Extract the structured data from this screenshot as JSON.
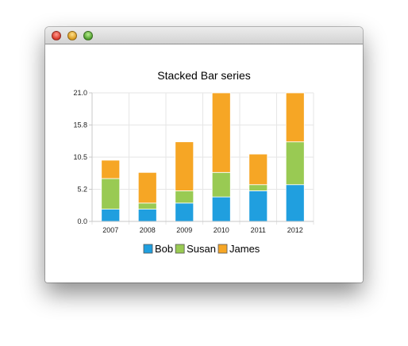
{
  "window": {
    "title": ""
  },
  "colors": {
    "Bob": "#209fdf",
    "Susan": "#99ca53",
    "James": "#f6a625",
    "grid": "#e6e6e6",
    "axis": "#c8c8c8"
  },
  "chart_data": {
    "type": "bar",
    "stacked": true,
    "title": "Stacked Bar series",
    "xlabel": "",
    "ylabel": "",
    "categories": [
      "2007",
      "2008",
      "2009",
      "2010",
      "2011",
      "2012"
    ],
    "series": [
      {
        "name": "Bob",
        "values": [
          2,
          2,
          3,
          4,
          5,
          6
        ]
      },
      {
        "name": "Susan",
        "values": [
          5,
          1,
          2,
          4,
          1,
          7
        ]
      },
      {
        "name": "James",
        "values": [
          3,
          5,
          8,
          13,
          5,
          8
        ]
      }
    ],
    "ylim": [
      0,
      21
    ],
    "yticks": [
      "0.0",
      "5.2",
      "10.5",
      "15.8",
      "21.0"
    ],
    "grid": true,
    "legend_position": "bottom"
  }
}
